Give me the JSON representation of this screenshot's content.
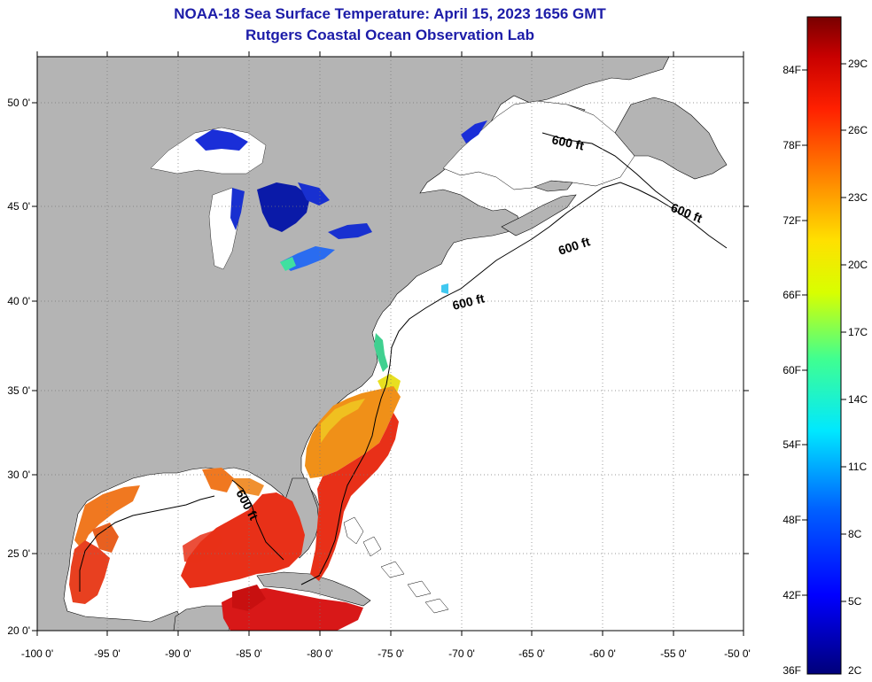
{
  "title": "NOAA-18 Sea Surface Temperature:  April 15, 2023 1656 GMT",
  "subtitle": "Rutgers Coastal Ocean Observation Lab",
  "lat_labels": [
    "50 0'",
    "45 0'",
    "40 0'",
    "35 0'",
    "30 0'",
    "25 0'",
    "20 0'"
  ],
  "lon_labels": [
    "-100 0'",
    "-95 0'",
    "-90 0'",
    "-85 0'",
    "-80 0'",
    "-75 0'",
    "-70 0'",
    "-65 0'",
    "-60 0'",
    "-55 0'",
    "-50 0'"
  ],
  "contour_label": "600 ft",
  "colorbar": {
    "f_labels": [
      "84F",
      "78F",
      "72F",
      "66F",
      "60F",
      "54F",
      "48F",
      "42F",
      "36F"
    ],
    "c_labels": [
      "29C",
      "26C",
      "23C",
      "20C",
      "17C",
      "14C",
      "11C",
      "8C",
      "5C",
      "2C"
    ]
  },
  "colors": {
    "land": "#b4b4b4",
    "no_data": "#ffffff",
    "title": "#1c1ca8"
  }
}
